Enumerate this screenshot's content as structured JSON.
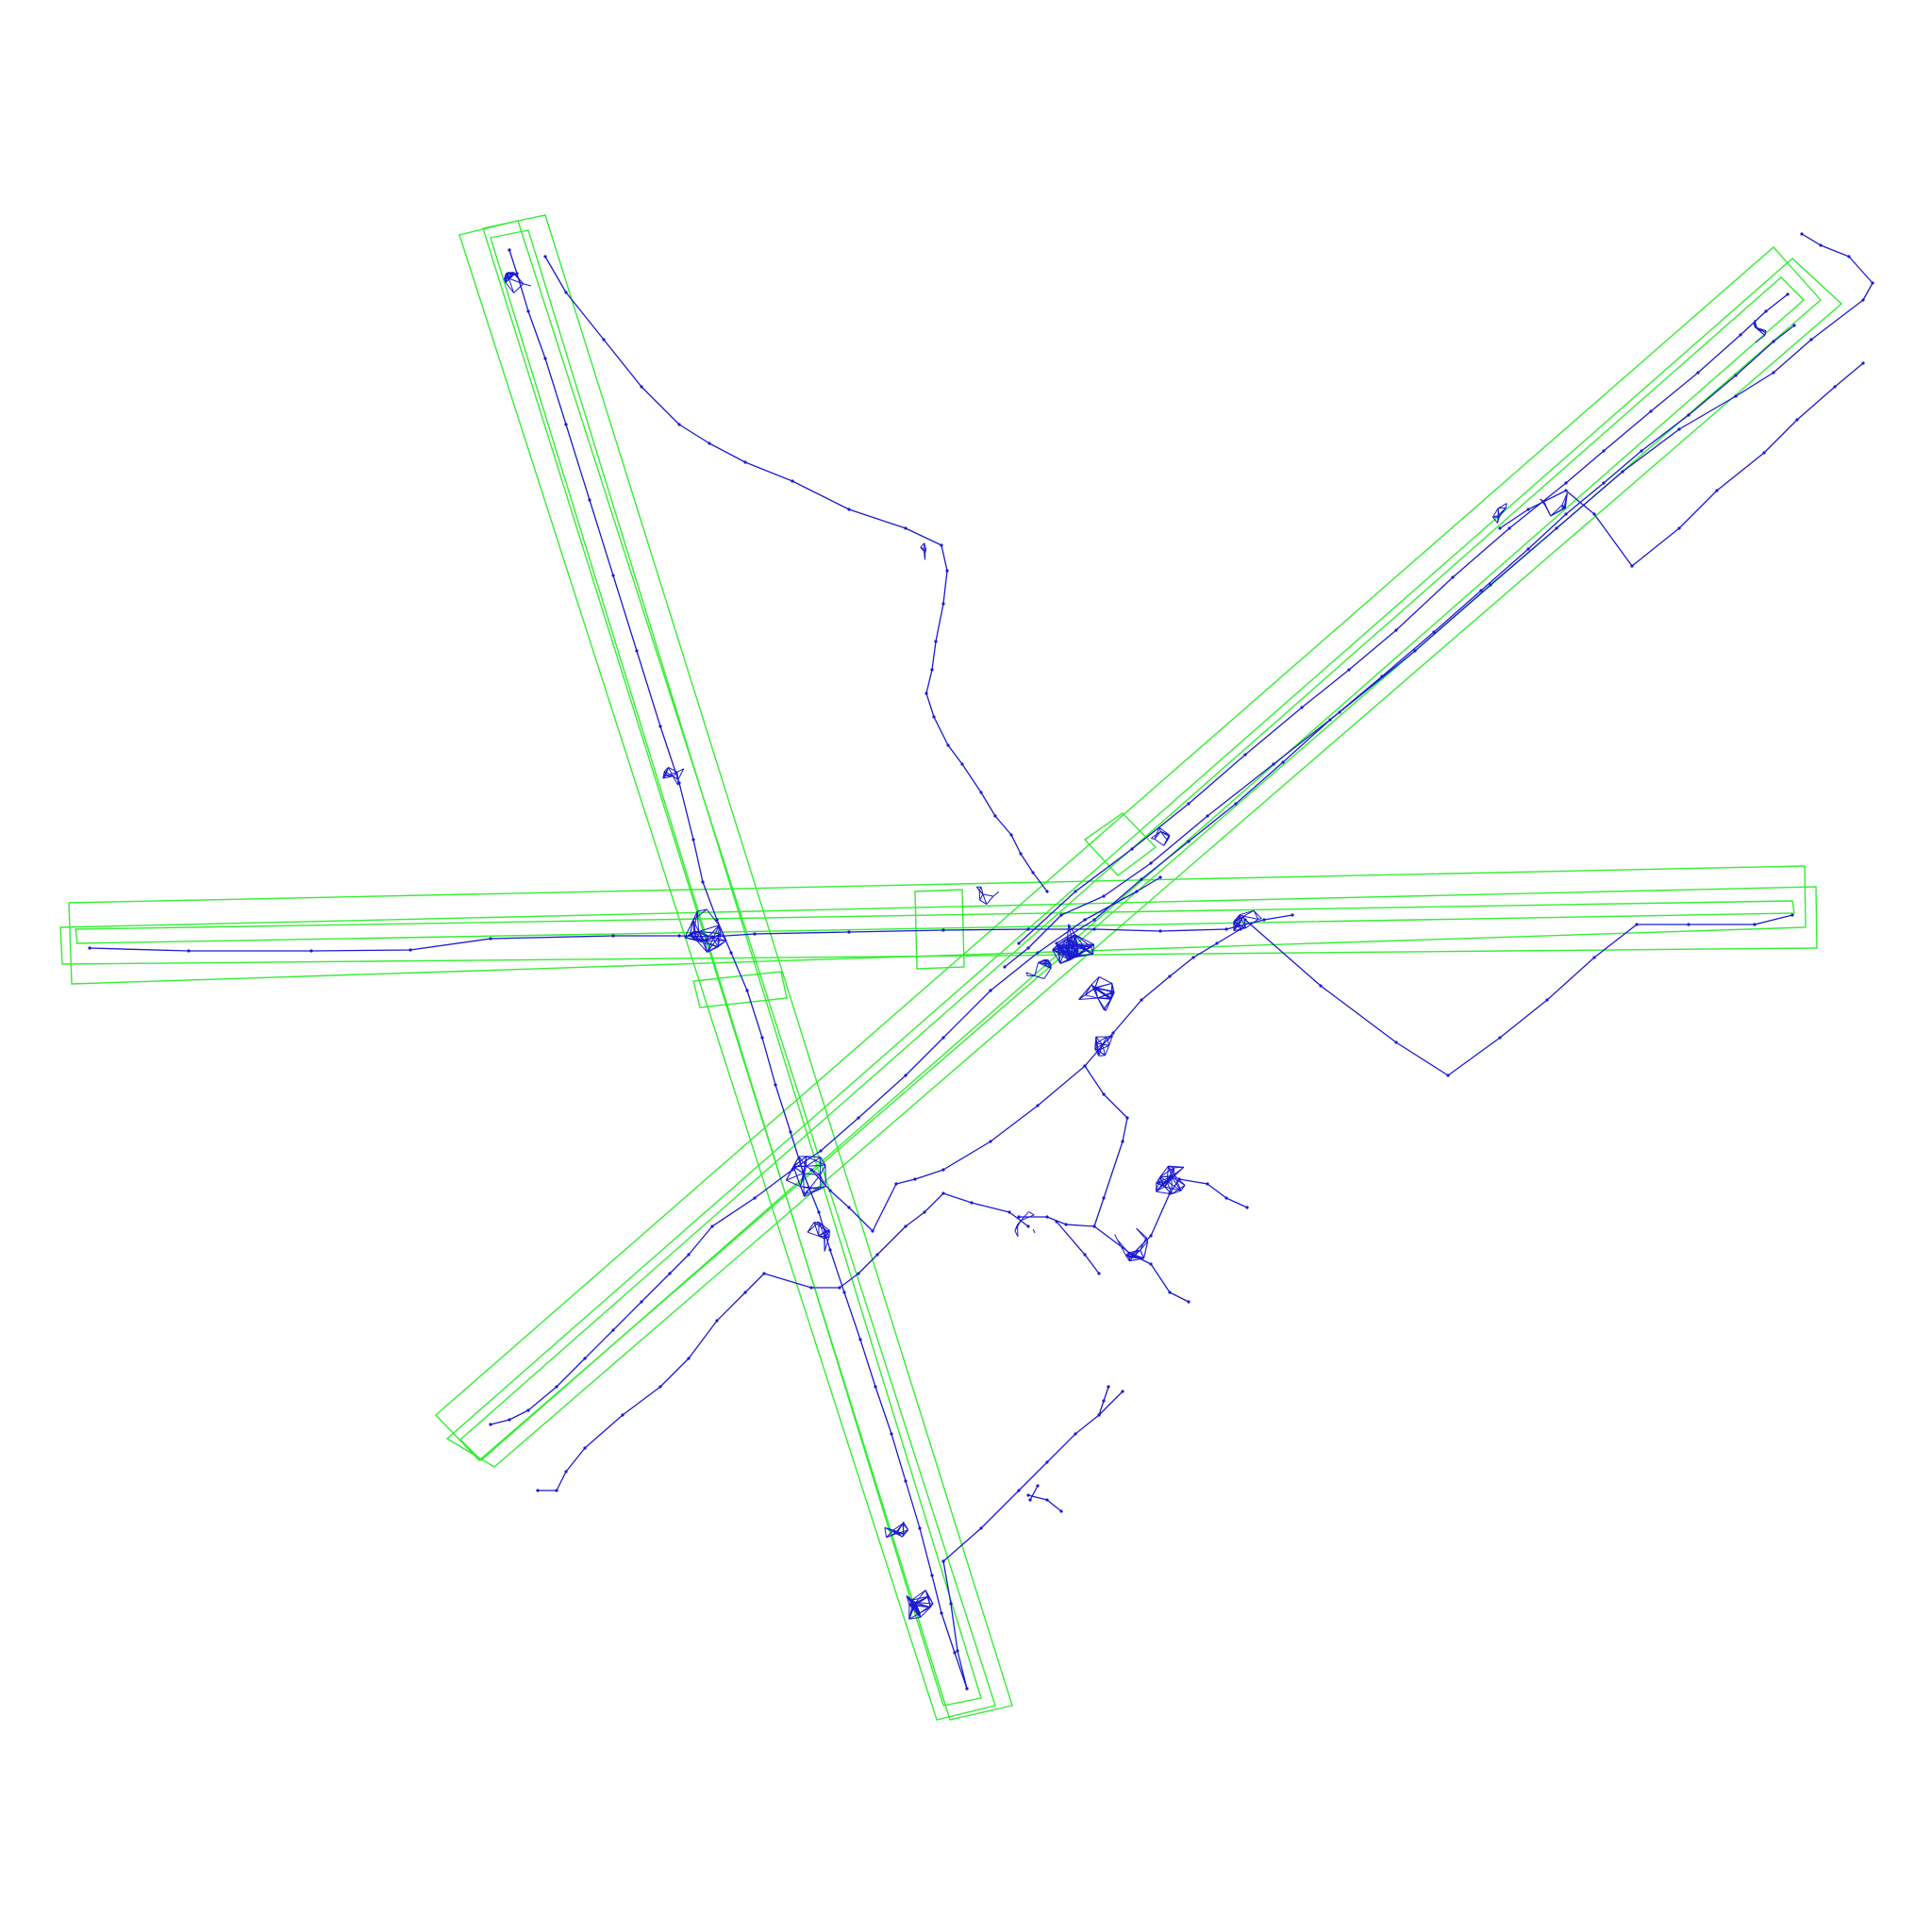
{
  "colors": {
    "background": "#ffffff",
    "runway_outline": "#33ee33",
    "taxi_graph": "#1a1ad0"
  },
  "legend": []
}
